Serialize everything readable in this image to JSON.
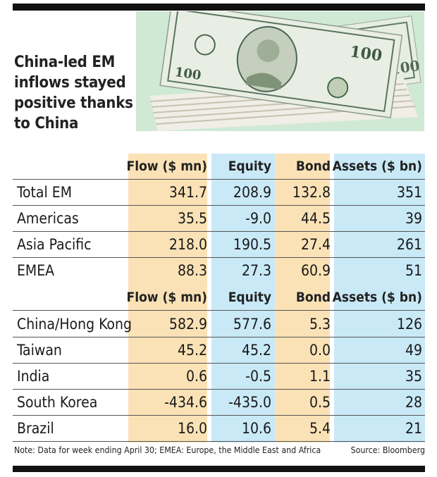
{
  "headline": "China-led EM inflows stayed positive thanks to China",
  "photo_icon": "dollar-bills-photo",
  "colors": {
    "flow_bg": "#fbe2b6",
    "equity_bg": "#c9e9f7",
    "bond_bg": "#fbe2b6",
    "assets_bg": "#c9e9f7",
    "bar": "#111111"
  },
  "columns": [
    "Flow ($ mn)",
    "Equity",
    "Bond",
    "Assets ($ bn)"
  ],
  "section1": [
    {
      "label": "Total EM",
      "flow": "341.7",
      "equity": "208.9",
      "bond": "132.8",
      "assets": "351"
    },
    {
      "label": "Americas",
      "flow": "35.5",
      "equity": "-9.0",
      "bond": "44.5",
      "assets": "39"
    },
    {
      "label": "Asia Pacific",
      "flow": "218.0",
      "equity": "190.5",
      "bond": "27.4",
      "assets": "261"
    },
    {
      "label": "EMEA",
      "flow": "88.3",
      "equity": "27.3",
      "bond": "60.9",
      "assets": "51"
    }
  ],
  "section2": [
    {
      "label": "China/Hong Kong",
      "flow": "582.9",
      "equity": "577.6",
      "bond": "5.3",
      "assets": "126"
    },
    {
      "label": "Taiwan",
      "flow": "45.2",
      "equity": "45.2",
      "bond": "0.0",
      "assets": "49"
    },
    {
      "label": "India",
      "flow": "0.6",
      "equity": "-0.5",
      "bond": "1.1",
      "assets": "35"
    },
    {
      "label": "South Korea",
      "flow": "-434.6",
      "equity": "-435.0",
      "bond": "0.5",
      "assets": "28"
    },
    {
      "label": "Brazil",
      "flow": "16.0",
      "equity": "10.6",
      "bond": "5.4",
      "assets": "21"
    }
  ],
  "note": "Note: Data for week ending April 30; EMEA: Europe, the Middle East and Africa",
  "source": "Source: Bloomberg"
}
